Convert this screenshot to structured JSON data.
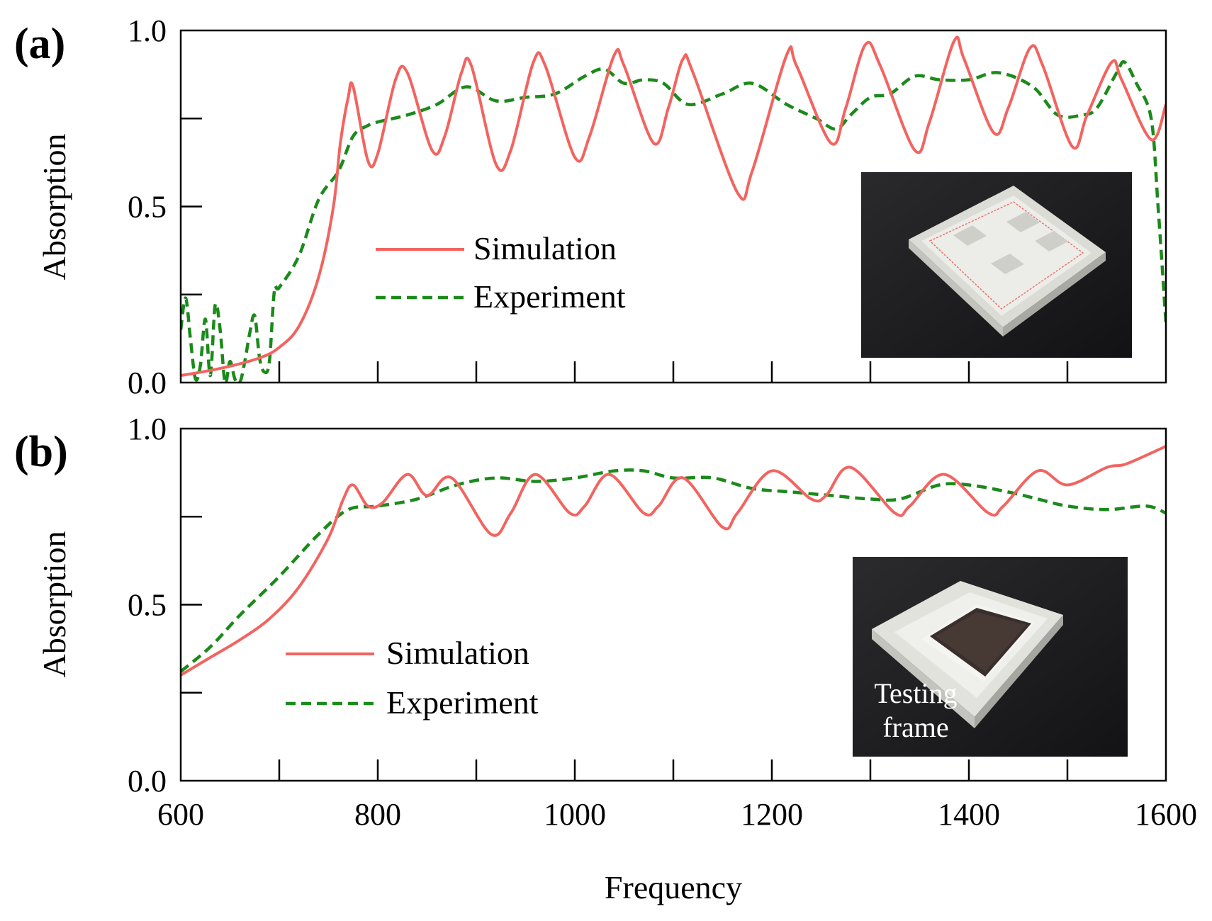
{
  "figure": {
    "xlabel": "Frequency",
    "colors": {
      "simulation": "#f26460",
      "experiment": "#1b8a1b",
      "axis": "#000000"
    }
  },
  "chart_data": [
    {
      "type": "line",
      "panel": "(a)",
      "xlabel": "Frequency",
      "ylabel": "Absorption",
      "xlim": [
        600,
        1600
      ],
      "ylim": [
        0,
        1.0
      ],
      "x_ticks": [
        600,
        700,
        800,
        900,
        1000,
        1100,
        1200,
        1300,
        1400,
        1500,
        1600
      ],
      "x_tick_labels": [],
      "y_ticks": [
        0,
        0.25,
        0.5,
        0.75,
        1.0
      ],
      "y_tick_labels": [
        "0.0",
        "",
        "0.5",
        "",
        "1.0"
      ],
      "legend": [
        "Simulation",
        "Experiment"
      ],
      "legend_position": "center-left",
      "inset": {
        "description": "photo of white 3D-printed sample plate"
      },
      "series": [
        {
          "name": "Simulation",
          "style": "solid",
          "color": "#f26460",
          "points": [
            [
              600,
              0.02
            ],
            [
              640,
              0.04
            ],
            [
              680,
              0.07
            ],
            [
              700,
              0.1
            ],
            [
              720,
              0.16
            ],
            [
              740,
              0.3
            ],
            [
              755,
              0.5
            ],
            [
              762,
              0.68
            ],
            [
              770,
              0.81
            ],
            [
              775,
              0.84
            ],
            [
              790,
              0.63
            ],
            [
              800,
              0.65
            ],
            [
              818,
              0.86
            ],
            [
              830,
              0.88
            ],
            [
              855,
              0.66
            ],
            [
              868,
              0.7
            ],
            [
              885,
              0.88
            ],
            [
              895,
              0.9
            ],
            [
              920,
              0.62
            ],
            [
              935,
              0.66
            ],
            [
              958,
              0.91
            ],
            [
              970,
              0.9
            ],
            [
              1000,
              0.64
            ],
            [
              1015,
              0.7
            ],
            [
              1040,
              0.93
            ],
            [
              1050,
              0.9
            ],
            [
              1080,
              0.68
            ],
            [
              1095,
              0.78
            ],
            [
              1110,
              0.92
            ],
            [
              1120,
              0.88
            ],
            [
              1165,
              0.54
            ],
            [
              1180,
              0.6
            ],
            [
              1215,
              0.93
            ],
            [
              1225,
              0.9
            ],
            [
              1260,
              0.68
            ],
            [
              1275,
              0.78
            ],
            [
              1295,
              0.96
            ],
            [
              1310,
              0.9
            ],
            [
              1345,
              0.66
            ],
            [
              1360,
              0.74
            ],
            [
              1385,
              0.97
            ],
            [
              1395,
              0.92
            ],
            [
              1425,
              0.71
            ],
            [
              1440,
              0.78
            ],
            [
              1462,
              0.95
            ],
            [
              1475,
              0.9
            ],
            [
              1505,
              0.67
            ],
            [
              1520,
              0.76
            ],
            [
              1545,
              0.91
            ],
            [
              1555,
              0.86
            ],
            [
              1585,
              0.69
            ],
            [
              1600,
              0.79
            ]
          ]
        },
        {
          "name": "Experiment",
          "style": "dashed",
          "color": "#1b8a1b",
          "points": [
            [
              600,
              0.15
            ],
            [
              605,
              0.24
            ],
            [
              610,
              0.12
            ],
            [
              615,
              0.01
            ],
            [
              620,
              0.05
            ],
            [
              625,
              0.18
            ],
            [
              630,
              0.02
            ],
            [
              635,
              0.22
            ],
            [
              640,
              0.15
            ],
            [
              645,
              0.0
            ],
            [
              650,
              0.06
            ],
            [
              655,
              0.01
            ],
            [
              660,
              0.0
            ],
            [
              665,
              0.06
            ],
            [
              670,
              0.14
            ],
            [
              675,
              0.19
            ],
            [
              680,
              0.07
            ],
            [
              685,
              0.03
            ],
            [
              690,
              0.06
            ],
            [
              695,
              0.26
            ],
            [
              700,
              0.27
            ],
            [
              720,
              0.36
            ],
            [
              740,
              0.52
            ],
            [
              760,
              0.6
            ],
            [
              775,
              0.7
            ],
            [
              790,
              0.73
            ],
            [
              800,
              0.74
            ],
            [
              830,
              0.76
            ],
            [
              860,
              0.79
            ],
            [
              890,
              0.84
            ],
            [
              920,
              0.8
            ],
            [
              950,
              0.81
            ],
            [
              980,
              0.82
            ],
            [
              1010,
              0.87
            ],
            [
              1030,
              0.89
            ],
            [
              1050,
              0.85
            ],
            [
              1070,
              0.86
            ],
            [
              1090,
              0.85
            ],
            [
              1115,
              0.79
            ],
            [
              1150,
              0.82
            ],
            [
              1180,
              0.85
            ],
            [
              1215,
              0.79
            ],
            [
              1245,
              0.75
            ],
            [
              1265,
              0.72
            ],
            [
              1280,
              0.76
            ],
            [
              1300,
              0.81
            ],
            [
              1320,
              0.82
            ],
            [
              1345,
              0.87
            ],
            [
              1370,
              0.86
            ],
            [
              1400,
              0.86
            ],
            [
              1430,
              0.88
            ],
            [
              1465,
              0.84
            ],
            [
              1490,
              0.76
            ],
            [
              1515,
              0.76
            ],
            [
              1530,
              0.78
            ],
            [
              1550,
              0.88
            ],
            [
              1558,
              0.91
            ],
            [
              1570,
              0.85
            ],
            [
              1585,
              0.75
            ],
            [
              1592,
              0.5
            ],
            [
              1600,
              0.17
            ]
          ]
        }
      ]
    },
    {
      "type": "line",
      "panel": "(b)",
      "xlabel": "Frequency",
      "ylabel": "Absorption",
      "xlim": [
        600,
        1600
      ],
      "ylim": [
        0,
        1.0
      ],
      "x_ticks": [
        600,
        700,
        800,
        900,
        1000,
        1100,
        1200,
        1300,
        1400,
        1500,
        1600
      ],
      "x_tick_labels": [
        "600",
        "",
        "800",
        "",
        "1000",
        "",
        "1200",
        "",
        "1400",
        "",
        "1600"
      ],
      "y_ticks": [
        0,
        0.25,
        0.5,
        0.75,
        1.0
      ],
      "y_tick_labels": [
        "0.0",
        "",
        "0.5",
        "",
        "1.0"
      ],
      "legend": [
        "Simulation",
        "Experiment"
      ],
      "legend_position": "lower-left",
      "inset": {
        "description": "photo of white testing frame holding a dark sample",
        "caption_line1": "Testing",
        "caption_line2": "frame"
      },
      "series": [
        {
          "name": "Simulation",
          "style": "solid",
          "color": "#f26460",
          "points": [
            [
              600,
              0.3
            ],
            [
              630,
              0.35
            ],
            [
              660,
              0.4
            ],
            [
              690,
              0.46
            ],
            [
              720,
              0.55
            ],
            [
              750,
              0.69
            ],
            [
              765,
              0.8
            ],
            [
              775,
              0.84
            ],
            [
              790,
              0.78
            ],
            [
              805,
              0.79
            ],
            [
              830,
              0.87
            ],
            [
              850,
              0.81
            ],
            [
              875,
              0.86
            ],
            [
              915,
              0.7
            ],
            [
              935,
              0.76
            ],
            [
              960,
              0.87
            ],
            [
              995,
              0.76
            ],
            [
              1010,
              0.78
            ],
            [
              1035,
              0.87
            ],
            [
              1070,
              0.76
            ],
            [
              1085,
              0.78
            ],
            [
              1110,
              0.86
            ],
            [
              1150,
              0.72
            ],
            [
              1165,
              0.76
            ],
            [
              1200,
              0.88
            ],
            [
              1240,
              0.8
            ],
            [
              1255,
              0.81
            ],
            [
              1280,
              0.89
            ],
            [
              1325,
              0.76
            ],
            [
              1340,
              0.78
            ],
            [
              1375,
              0.87
            ],
            [
              1420,
              0.76
            ],
            [
              1435,
              0.78
            ],
            [
              1470,
              0.88
            ],
            [
              1500,
              0.84
            ],
            [
              1540,
              0.89
            ],
            [
              1560,
              0.9
            ],
            [
              1600,
              0.95
            ]
          ]
        },
        {
          "name": "Experiment",
          "style": "dashed",
          "color": "#1b8a1b",
          "points": [
            [
              600,
              0.31
            ],
            [
              630,
              0.38
            ],
            [
              660,
              0.47
            ],
            [
              700,
              0.58
            ],
            [
              740,
              0.7
            ],
            [
              770,
              0.77
            ],
            [
              800,
              0.78
            ],
            [
              840,
              0.8
            ],
            [
              880,
              0.84
            ],
            [
              920,
              0.86
            ],
            [
              960,
              0.85
            ],
            [
              1000,
              0.86
            ],
            [
              1040,
              0.88
            ],
            [
              1070,
              0.88
            ],
            [
              1100,
              0.86
            ],
            [
              1140,
              0.86
            ],
            [
              1180,
              0.83
            ],
            [
              1220,
              0.82
            ],
            [
              1260,
              0.81
            ],
            [
              1300,
              0.8
            ],
            [
              1330,
              0.8
            ],
            [
              1370,
              0.84
            ],
            [
              1400,
              0.84
            ],
            [
              1440,
              0.82
            ],
            [
              1470,
              0.8
            ],
            [
              1500,
              0.78
            ],
            [
              1540,
              0.77
            ],
            [
              1580,
              0.78
            ],
            [
              1600,
              0.76
            ]
          ]
        }
      ]
    }
  ]
}
